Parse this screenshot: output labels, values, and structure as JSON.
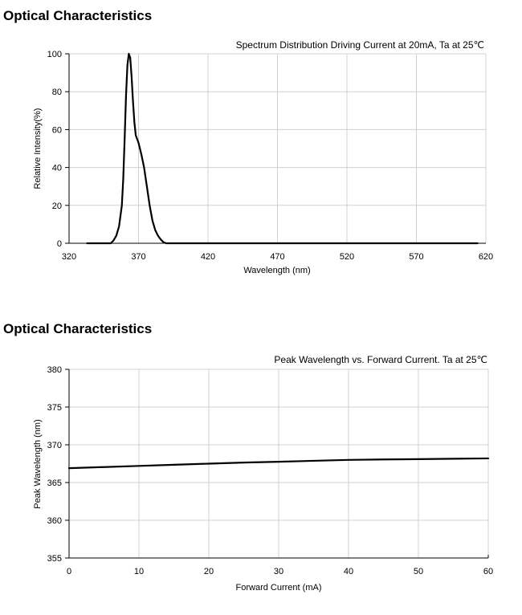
{
  "sections": [
    {
      "title": "Optical Characteristics"
    },
    {
      "title": "Optical Characteristics"
    }
  ],
  "chart_data": [
    {
      "type": "line",
      "title": "Spectrum Distribution Driving Current at 20mA, Ta at 25℃",
      "xlabel": "Wavelength (nm)",
      "ylabel": "Relative Intensity(%)",
      "xlim": [
        320,
        620
      ],
      "ylim": [
        0,
        100
      ],
      "xticks": [
        320,
        370,
        420,
        470,
        520,
        570,
        620
      ],
      "yticks": [
        0,
        20,
        40,
        60,
        80,
        100
      ],
      "grid": true,
      "series": [
        {
          "color": "#000000",
          "x": [
            333,
            350,
            352,
            354,
            356,
            358,
            359,
            360,
            361,
            362,
            363,
            364,
            365,
            366,
            367,
            368,
            370,
            372,
            374,
            376,
            378,
            380,
            382,
            384,
            386,
            388,
            390,
            400,
            500,
            600,
            614
          ],
          "y": [
            0,
            0,
            1.5,
            4,
            9,
            20,
            34,
            55,
            78,
            94,
            100,
            98,
            88,
            75,
            64,
            57,
            53,
            47,
            40,
            30,
            20,
            12,
            7,
            4,
            2,
            0.5,
            0,
            0,
            0,
            0,
            0
          ]
        }
      ]
    },
    {
      "type": "line",
      "title": "Peak Wavelength vs. Forward Current. Ta at 25℃",
      "xlabel": "Forward Current (mA)",
      "ylabel": "Peak Wavelength (nm)",
      "xlim": [
        0,
        60
      ],
      "ylim": [
        355,
        380
      ],
      "xticks": [
        0,
        10,
        20,
        30,
        40,
        50,
        60
      ],
      "yticks": [
        355,
        360,
        365,
        370,
        375,
        380
      ],
      "grid": true,
      "series": [
        {
          "color": "#000000",
          "x": [
            0,
            5,
            10,
            15,
            20,
            25,
            30,
            35,
            40,
            45,
            50,
            55,
            60
          ],
          "y": [
            366.9,
            367.05,
            367.2,
            367.35,
            367.5,
            367.65,
            367.75,
            367.88,
            368.0,
            368.06,
            368.1,
            368.15,
            368.2
          ]
        }
      ]
    }
  ]
}
